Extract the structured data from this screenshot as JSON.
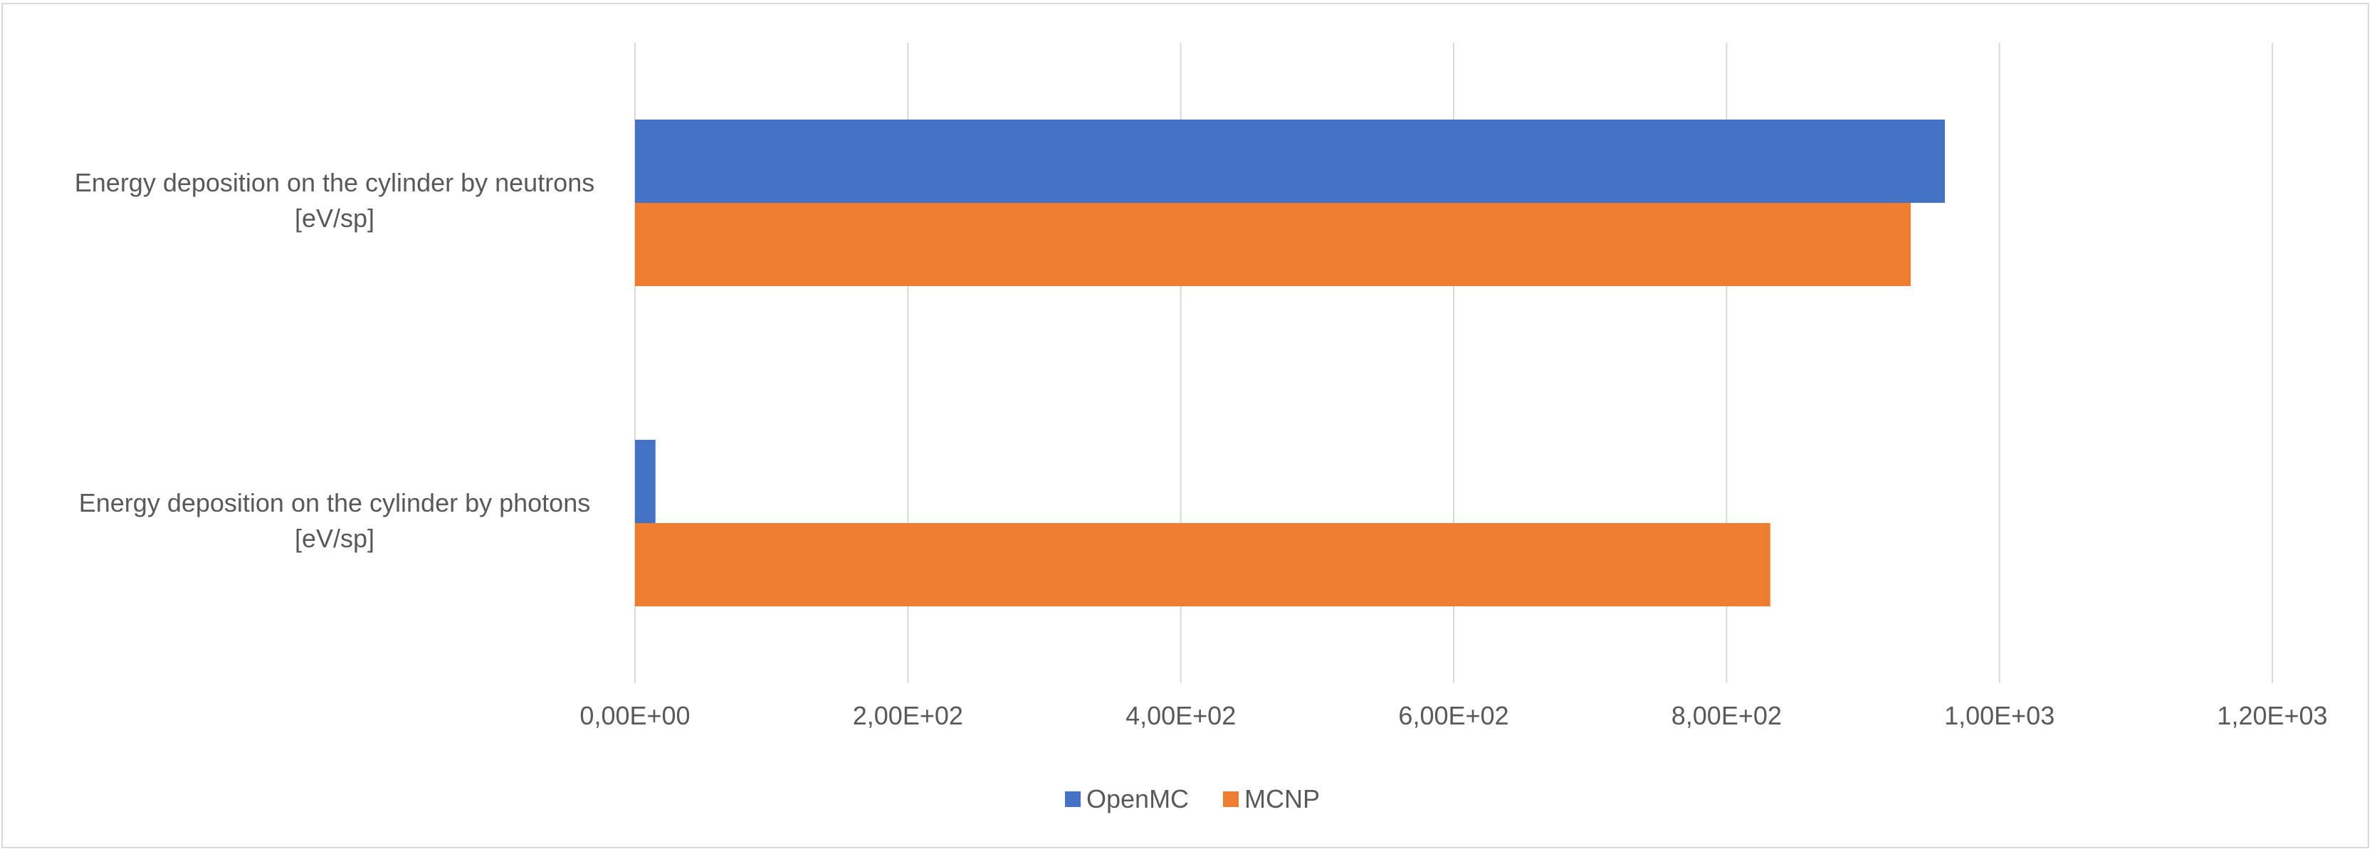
{
  "chart_data": {
    "type": "bar",
    "orientation": "horizontal",
    "categories": [
      [
        "Energy deposition on the cylinder by neutrons",
        "[eV/sp]"
      ],
      [
        "Energy deposition on the cylinder by photons",
        "[eV/sp]"
      ]
    ],
    "series": [
      {
        "name": "OpenMC",
        "values": [
          960,
          15
        ],
        "color": "#4472C4"
      },
      {
        "name": "MCNP",
        "values": [
          935,
          832
        ],
        "color": "#ED7D31"
      }
    ],
    "xlim": [
      0,
      1200
    ],
    "xticks": [
      0,
      200,
      400,
      600,
      800,
      1000,
      1200
    ],
    "xtick_labels": [
      "0,00E+00",
      "2,00E+02",
      "4,00E+02",
      "6,00E+02",
      "8,00E+02",
      "1,00E+03",
      "1,20E+03"
    ],
    "grid": true,
    "legend": "bottom",
    "title": "",
    "xlabel": "",
    "ylabel": ""
  }
}
